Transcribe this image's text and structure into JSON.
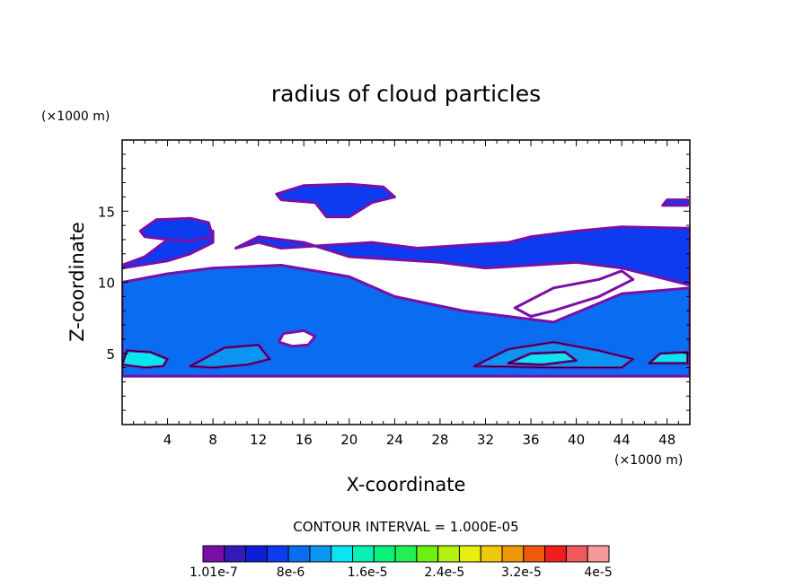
{
  "chart_data": {
    "type": "heatmap",
    "title": "radius of cloud particles",
    "xlabel": "X-coordinate",
    "ylabel": "Z-coordinate",
    "x_unit": "(×1000 m)",
    "y_unit": "(×1000 m)",
    "xlim": [
      0,
      50
    ],
    "ylim": [
      0,
      20
    ],
    "x_ticks": [
      4,
      8,
      12,
      16,
      20,
      24,
      28,
      32,
      36,
      40,
      44,
      48
    ],
    "y_ticks": [
      5,
      10,
      15
    ],
    "contour_interval_text": "CONTOUR INTERVAL = 1.000E-05",
    "colorbar": {
      "colors": [
        "#7a0fa8",
        "#3219b8",
        "#0d1fd6",
        "#0d3cf0",
        "#0a6cf0",
        "#0a96f0",
        "#0ae6f0",
        "#0af0b4",
        "#0af078",
        "#22f050",
        "#6cf010",
        "#b4f010",
        "#e6f010",
        "#f0c80a",
        "#f0960a",
        "#f05a0a",
        "#f01e1e",
        "#f05a5a",
        "#f59a9a"
      ],
      "labels": [
        "1.01e-7",
        "8e-6",
        "1.6e-5",
        "2.4e-5",
        "3.2e-5",
        "4e-5"
      ]
    },
    "regions": [
      {
        "name": "lower-cloud-layer",
        "level": "#0a6cf0",
        "poly": [
          [
            0,
            3.4
          ],
          [
            50,
            3.4
          ],
          [
            50,
            9.6
          ],
          [
            44,
            9.2
          ],
          [
            38,
            7.2
          ],
          [
            30,
            8.0
          ],
          [
            24,
            9.0
          ],
          [
            20,
            10.4
          ],
          [
            14,
            11.2
          ],
          [
            8,
            11.0
          ],
          [
            4,
            10.6
          ],
          [
            0,
            10.0
          ]
        ]
      },
      {
        "name": "upper-left-cloud",
        "level": "#0d3cf0",
        "poly": [
          [
            0,
            11.2
          ],
          [
            2,
            11.8
          ],
          [
            4,
            13.0
          ],
          [
            6,
            13.4
          ],
          [
            8,
            13.6
          ],
          [
            8,
            12.8
          ],
          [
            6,
            12.0
          ],
          [
            4,
            11.5
          ],
          [
            0,
            11.0
          ]
        ]
      },
      {
        "name": "upper-left-cap",
        "level": "#0d3cf0",
        "poly": [
          [
            1.6,
            13.6
          ],
          [
            3,
            14.4
          ],
          [
            6,
            14.5
          ],
          [
            7.6,
            14.2
          ],
          [
            8,
            13.2
          ],
          [
            6,
            12.9
          ],
          [
            4,
            13.0
          ],
          [
            2,
            13.2
          ]
        ]
      },
      {
        "name": "mid-upper-cloud",
        "level": "#0d3cf0",
        "poly": [
          [
            10,
            12.4
          ],
          [
            12,
            13.2
          ],
          [
            16,
            12.8
          ],
          [
            20,
            11.8
          ],
          [
            24,
            11.6
          ],
          [
            28,
            11.4
          ],
          [
            32,
            11.0
          ],
          [
            36,
            11.2
          ],
          [
            40,
            11.4
          ],
          [
            44,
            11.0
          ],
          [
            48,
            10.2
          ],
          [
            50,
            9.8
          ],
          [
            50,
            13.8
          ],
          [
            44,
            13.9
          ],
          [
            40,
            13.6
          ],
          [
            36,
            13.2
          ],
          [
            34,
            12.8
          ],
          [
            30,
            12.6
          ],
          [
            26,
            12.4
          ],
          [
            22,
            12.8
          ],
          [
            18,
            12.6
          ],
          [
            14,
            12.4
          ],
          [
            12,
            12.8
          ]
        ]
      },
      {
        "name": "top-cloud",
        "level": "#0d3cf0",
        "poly": [
          [
            13.6,
            16.2
          ],
          [
            16,
            16.8
          ],
          [
            20,
            16.9
          ],
          [
            23,
            16.7
          ],
          [
            24,
            16.0
          ],
          [
            22,
            15.6
          ],
          [
            20,
            14.6
          ],
          [
            18,
            14.6
          ],
          [
            17,
            15.6
          ],
          [
            14,
            15.8
          ]
        ]
      },
      {
        "name": "right-cap",
        "level": "#0d3cf0",
        "poly": [
          [
            47.6,
            15.4
          ],
          [
            48,
            15.8
          ],
          [
            49.8,
            15.8
          ],
          [
            49.8,
            15.4
          ]
        ]
      },
      {
        "name": "core-low",
        "level": "#0ae6f0",
        "poly": [
          [
            0,
            4.2
          ],
          [
            0.4,
            5.2
          ],
          [
            2.5,
            5.1
          ],
          [
            4,
            4.6
          ],
          [
            3.6,
            4.1
          ],
          [
            2,
            4.0
          ]
        ]
      },
      {
        "name": "core-mid",
        "level": "#0a96f0",
        "poly": [
          [
            6,
            4.1
          ],
          [
            9,
            5.4
          ],
          [
            12,
            5.6
          ],
          [
            13,
            4.6
          ],
          [
            11,
            4.2
          ],
          [
            8,
            4.0
          ]
        ]
      },
      {
        "name": "core-right",
        "level": "#0a96f0",
        "poly": [
          [
            31,
            4.1
          ],
          [
            34,
            5.3
          ],
          [
            38,
            5.8
          ],
          [
            42,
            5.2
          ],
          [
            45,
            4.6
          ],
          [
            44,
            4.0
          ],
          [
            38,
            4.0
          ]
        ]
      },
      {
        "name": "core-right-bright",
        "level": "#0ae6f0",
        "poly": [
          [
            34,
            4.3
          ],
          [
            36,
            5.0
          ],
          [
            39,
            5.1
          ],
          [
            40,
            4.5
          ],
          [
            37,
            4.2
          ]
        ]
      },
      {
        "name": "core-far-right",
        "level": "#0ae6f0",
        "poly": [
          [
            46.4,
            4.3
          ],
          [
            47.4,
            5.0
          ],
          [
            49.8,
            5.1
          ],
          [
            49.8,
            4.3
          ]
        ]
      },
      {
        "name": "gap-center",
        "level": "#ffffff",
        "poly": [
          [
            13.8,
            5.8
          ],
          [
            14.2,
            6.4
          ],
          [
            16,
            6.6
          ],
          [
            17,
            6.2
          ],
          [
            16.4,
            5.6
          ],
          [
            15,
            5.5
          ]
        ]
      },
      {
        "name": "gap-right",
        "level": "#ffffff",
        "poly": [
          [
            34.6,
            8.2
          ],
          [
            38,
            9.6
          ],
          [
            42,
            10.2
          ],
          [
            44,
            10.8
          ],
          [
            45,
            10.2
          ],
          [
            42,
            9.0
          ],
          [
            38,
            8.0
          ],
          [
            36,
            7.6
          ]
        ]
      }
    ]
  }
}
